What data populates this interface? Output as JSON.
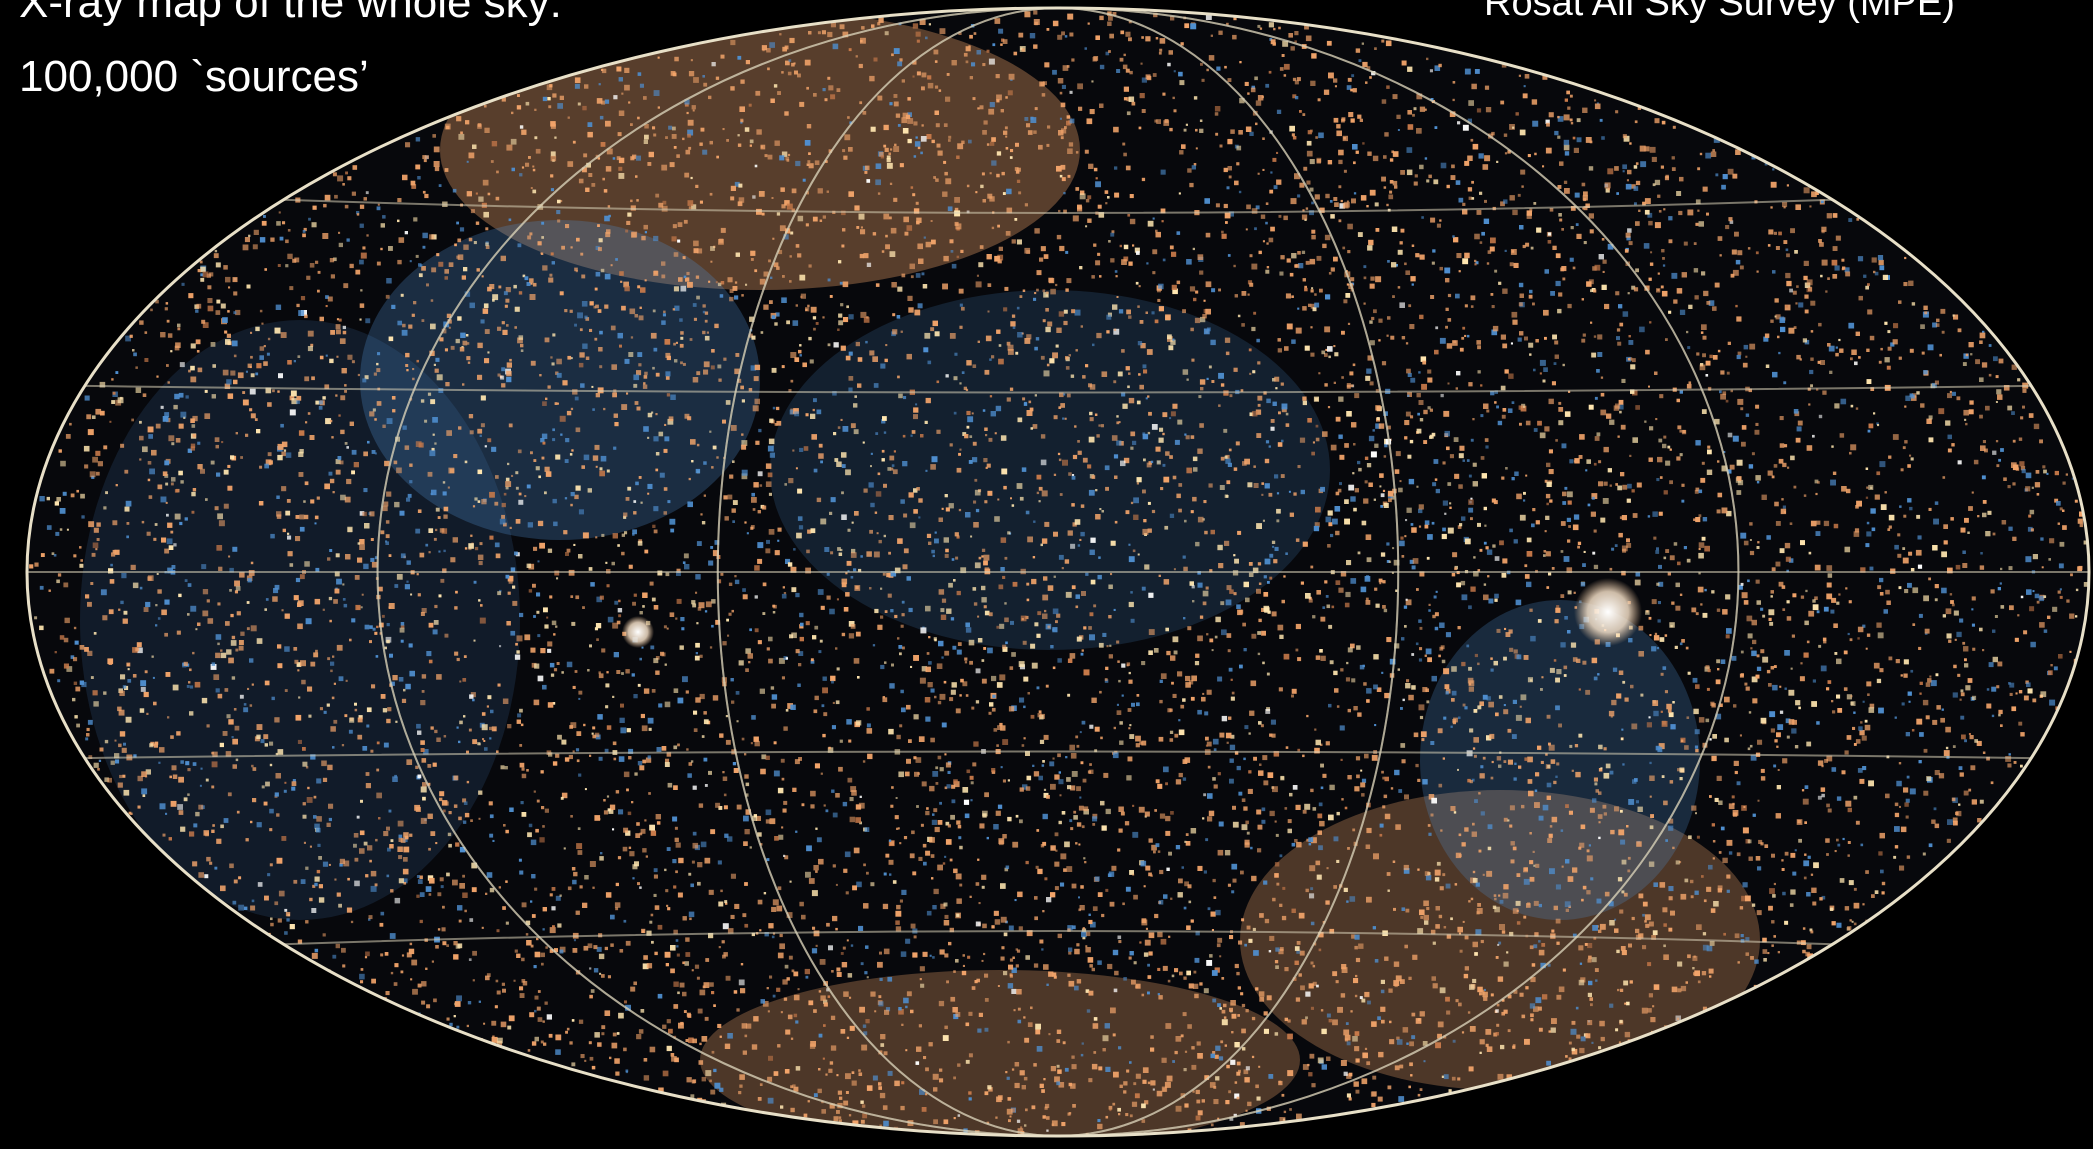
{
  "caption": {
    "title": "X-ray map of the whole sky:",
    "count": "100,000 `sources’",
    "credit": "Rosat All Sky Survey (MPE)"
  },
  "colors": {
    "background": "#000000",
    "text": "#ffffff",
    "warm_emission": "#f2a46a",
    "hot_emission": "#ffe6b0",
    "soft_emission": "#4f8fd0",
    "grid_line": "#d9d2b8"
  },
  "map": {
    "projection": "aitoff",
    "grid": true,
    "bright_sources": 2
  }
}
